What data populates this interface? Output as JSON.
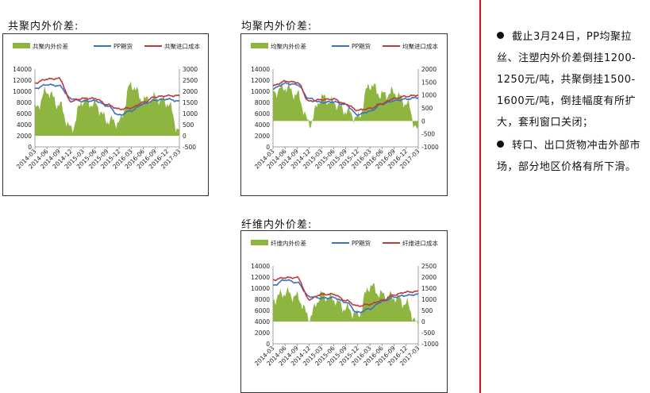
{
  "charts": [
    {
      "title": "共聚内外价差:",
      "legend": [
        "共聚内外价差",
        "PP期货",
        "共聚进口成本"
      ],
      "left_ticks": [
        "14000",
        "12000",
        "10000",
        "8000",
        "6000",
        "4000",
        "2000",
        "0"
      ],
      "right_ticks": [
        "3000",
        "2500",
        "2000",
        "1500",
        "1000",
        "500",
        "0",
        "-500"
      ],
      "x_ticks": [
        "2014-03",
        "2014-06",
        "2014-09",
        "2014-12",
        "2015-03",
        "2015-06",
        "2015-09",
        "2015-12",
        "2016-03",
        "2016-06",
        "2016-09",
        "2016-12",
        "2017-03"
      ]
    },
    {
      "title": "均聚内外价差:",
      "legend": [
        "均聚内外价差",
        "PP期货",
        "均聚进口成本"
      ],
      "left_ticks": [
        "14000",
        "12000",
        "10000",
        "8000",
        "6000",
        "4000",
        "2000",
        "0"
      ],
      "right_ticks": [
        "2000",
        "1500",
        "1000",
        "500",
        "0",
        "-500",
        "-1000"
      ],
      "x_ticks": [
        "2014-03",
        "2014-06",
        "2014-09",
        "2014-12",
        "2015-03",
        "2015-06",
        "2015-09",
        "2015-12",
        "2016-03",
        "2016-06",
        "2016-09",
        "2016-12",
        "2017-03"
      ]
    },
    {
      "title": "纤维内外价差:",
      "legend": [
        "纤维内外价差",
        "PP期货",
        "纤维进口成本"
      ],
      "left_ticks": [
        "14000",
        "12000",
        "10000",
        "8000",
        "6000",
        "4000",
        "2000",
        "0"
      ],
      "right_ticks": [
        "2500",
        "2000",
        "1500",
        "1000",
        "500",
        "0",
        "-500",
        "-1000"
      ],
      "x_ticks": [
        "2014-03",
        "2014-06",
        "2014-09",
        "2014-12",
        "2015-03",
        "2015-06",
        "2015-09",
        "2015-12",
        "2016-03",
        "2016-06",
        "2016-09",
        "2016-12",
        "2017-03"
      ]
    }
  ],
  "chart_data": [
    {
      "type": "line",
      "title": "共聚内外价差:",
      "x": [
        "2014-03",
        "2014-06",
        "2014-09",
        "2014-12",
        "2015-03",
        "2015-06",
        "2015-09",
        "2015-12",
        "2016-03",
        "2016-06",
        "2016-09",
        "2016-12",
        "2017-03"
      ],
      "ylim_left": [
        0,
        14000
      ],
      "ylim_right": [
        -500,
        3000
      ],
      "series": [
        {
          "name": "共聚内外价差",
          "type": "area",
          "axis": "right",
          "color": "#8db53f",
          "values": [
            1200,
            2000,
            1400,
            300,
            1600,
            1400,
            700,
            600,
            2300,
            1600,
            1700,
            1500,
            200
          ]
        },
        {
          "name": "PP期货",
          "type": "line",
          "axis": "left",
          "color": "#3a72c4",
          "values": [
            10500,
            11200,
            11000,
            8700,
            8200,
            8300,
            7400,
            5700,
            6500,
            7700,
            8400,
            8600,
            8200
          ]
        },
        {
          "name": "共聚进口成本",
          "type": "line",
          "axis": "left",
          "color": "#c0393b",
          "values": [
            11500,
            12200,
            12300,
            8200,
            8700,
            8700,
            7600,
            6800,
            7000,
            8000,
            9000,
            9200,
            9200
          ]
        }
      ]
    },
    {
      "type": "line",
      "title": "均聚内外价差:",
      "x": [
        "2014-03",
        "2014-06",
        "2014-09",
        "2014-12",
        "2015-03",
        "2015-06",
        "2015-09",
        "2015-12",
        "2016-03",
        "2016-06",
        "2016-09",
        "2016-12",
        "2017-03"
      ],
      "ylim_left": [
        0,
        14000
      ],
      "ylim_right": [
        -1000,
        2000
      ],
      "series": [
        {
          "name": "均聚内外价差",
          "type": "area",
          "axis": "right",
          "color": "#8db53f",
          "values": [
            1100,
            1300,
            1000,
            -100,
            900,
            700,
            400,
            100,
            1400,
            1000,
            1100,
            700,
            -400
          ]
        },
        {
          "name": "PP期货",
          "type": "line",
          "axis": "left",
          "color": "#3a72c4",
          "values": [
            10500,
            11400,
            11200,
            8700,
            8000,
            8100,
            7600,
            5800,
            6400,
            7700,
            8300,
            8600,
            8900
          ]
        },
        {
          "name": "均聚进口成本",
          "type": "line",
          "axis": "left",
          "color": "#c0393b",
          "values": [
            11000,
            11800,
            11600,
            8200,
            8500,
            8600,
            7700,
            6600,
            6900,
            7800,
            8700,
            9100,
            9300
          ]
        }
      ]
    },
    {
      "type": "line",
      "title": "纤维内外价差:",
      "x": [
        "2014-03",
        "2014-06",
        "2014-09",
        "2014-12",
        "2015-03",
        "2015-06",
        "2015-09",
        "2015-12",
        "2016-03",
        "2016-06",
        "2016-09",
        "2016-12",
        "2017-03"
      ],
      "ylim_left": [
        0,
        14000
      ],
      "ylim_right": [
        -1000,
        2500
      ],
      "series": [
        {
          "name": "纤维内外价差",
          "type": "area",
          "axis": "right",
          "color": "#8db53f",
          "values": [
            1000,
            1300,
            1100,
            200,
            1200,
            1000,
            600,
            300,
            1600,
            1200,
            1100,
            800,
            -200
          ]
        },
        {
          "name": "PP期货",
          "type": "line",
          "axis": "left",
          "color": "#3a72c4",
          "values": [
            10500,
            11500,
            11000,
            8500,
            8200,
            8300,
            7500,
            5600,
            6300,
            7600,
            8400,
            8700,
            8900
          ]
        },
        {
          "name": "纤维进口成本",
          "type": "line",
          "axis": "left",
          "color": "#c0393b",
          "values": [
            11500,
            11900,
            11900,
            8000,
            8900,
            8900,
            7800,
            6800,
            7100,
            7800,
            8800,
            9300,
            9400
          ]
        }
      ]
    }
  ],
  "notes": [
    "截止3月24日，PP均聚拉丝、注塑内外价差倒挂1200-1250元/吨，共聚倒挂1500-1600元/吨，倒挂幅度有所扩大，套利窗口关闭；",
    "转口、出口货物冲击外部市场，部分地区价格有所下滑。"
  ],
  "colors": {
    "divider": "#dd1111",
    "area": "#8db53f",
    "pp": "#3a72c4",
    "import_cost": "#c0393b"
  }
}
